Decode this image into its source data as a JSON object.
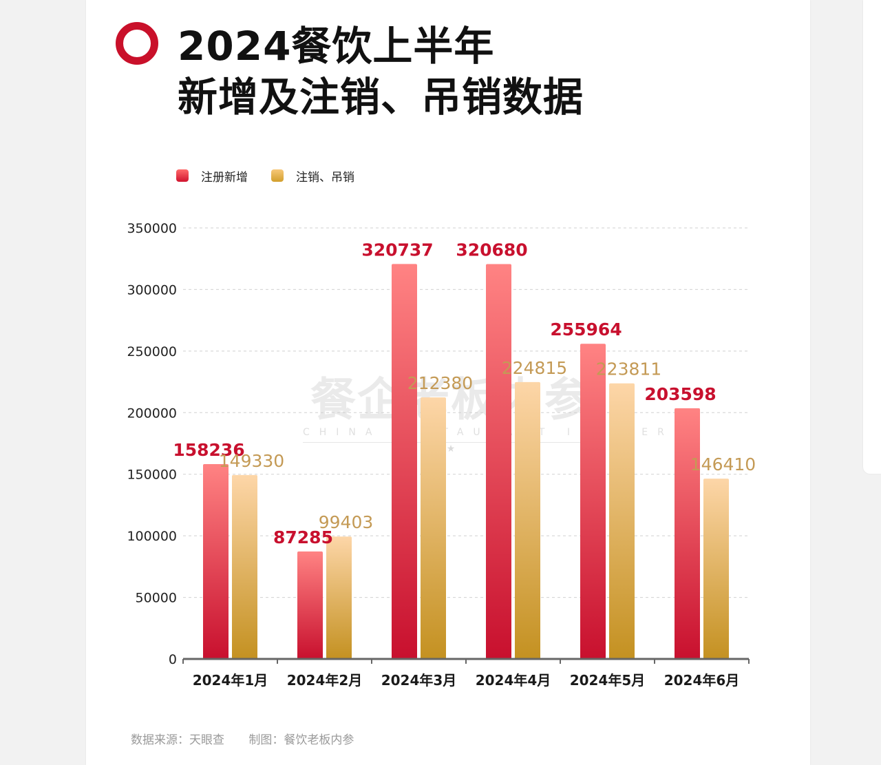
{
  "title_line1": "2024餐饮上半年",
  "title_line2": "新增及注销、吊销数据",
  "source_label": "数据来源：天眼查",
  "credit_label": "制图：餐饮老板内参",
  "watermark": {
    "main": "餐企老板内参",
    "sub": "CHINA RESTAURANT INSIDER",
    "star": "★"
  },
  "colors": {
    "brand_red": "#c9102a",
    "series_red_top": "#ff8080",
    "series_red_bottom": "#c8102e",
    "series_gold_top": "#fcd3a3",
    "series_gold_bottom": "#c49121",
    "label_red": "#c8102e",
    "label_gold": "#c49a55"
  },
  "chart_data": {
    "type": "bar",
    "title": "2024餐饮上半年新增及注销、吊销数据",
    "categories": [
      "2024年1月",
      "2024年2月",
      "2024年3月",
      "2024年4月",
      "2024年5月",
      "2024年6月"
    ],
    "series": [
      {
        "name": "注册新增",
        "values": [
          158236,
          87285,
          320737,
          320680,
          255964,
          203598
        ]
      },
      {
        "name": "注销、吊销",
        "values": [
          149330,
          99403,
          212380,
          224815,
          223811,
          146410
        ]
      }
    ],
    "yticks": [
      0,
      50000,
      100000,
      150000,
      200000,
      250000,
      300000,
      350000
    ],
    "ylim": [
      0,
      350000
    ],
    "xlabel": "",
    "ylabel": "",
    "grid": true,
    "legend_position": "top-left"
  }
}
